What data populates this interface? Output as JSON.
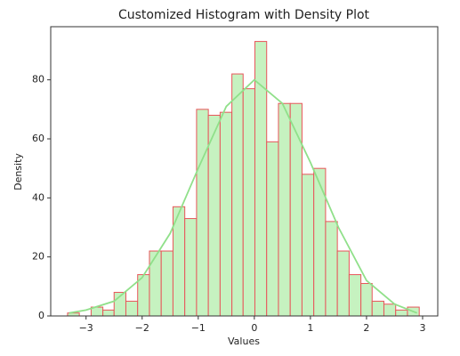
{
  "chart_data": {
    "type": "histogram",
    "title": "Customized Histogram with Density Plot",
    "x_label": "Values",
    "y_label": "Density",
    "bins": [
      -3.33,
      -3.12,
      -2.91,
      -2.7,
      -2.5,
      -2.29,
      -2.08,
      -1.87,
      -1.66,
      -1.45,
      -1.24,
      -1.03,
      -0.82,
      -0.61,
      -0.4,
      -0.2,
      0.01,
      0.22,
      0.43,
      0.64,
      0.85,
      1.06,
      1.27,
      1.48,
      1.69,
      1.9,
      2.1,
      2.31,
      2.52,
      2.73,
      2.94
    ],
    "values": [
      1,
      0,
      3,
      2,
      8,
      5,
      14,
      22,
      22,
      37,
      33,
      70,
      68,
      69,
      82,
      77,
      93,
      59,
      72,
      72,
      48,
      50,
      32,
      22,
      14,
      11,
      5,
      4,
      2,
      3
    ],
    "color": "#c6f2c0",
    "edge_color": "#e8555a",
    "density": {
      "color": "#90e08a",
      "x": [
        -3.3,
        -3.0,
        -2.5,
        -2.0,
        -1.5,
        -1.0,
        -0.5,
        0.0,
        0.5,
        1.0,
        1.5,
        2.0,
        2.5,
        2.9
      ],
      "values": [
        1,
        2,
        5,
        13,
        28,
        50,
        71,
        80,
        72,
        52,
        30,
        12,
        4,
        1
      ]
    },
    "xlim": [
      -3.63,
      3.27
    ],
    "xticks": [
      {
        "value": -3,
        "label": "−3"
      },
      {
        "value": -2,
        "label": "−2"
      },
      {
        "value": -1,
        "label": "−1"
      },
      0,
      1,
      2,
      3
    ],
    "ylim": [
      0,
      98
    ],
    "yticks": [
      0,
      20,
      40,
      60,
      80
    ]
  }
}
